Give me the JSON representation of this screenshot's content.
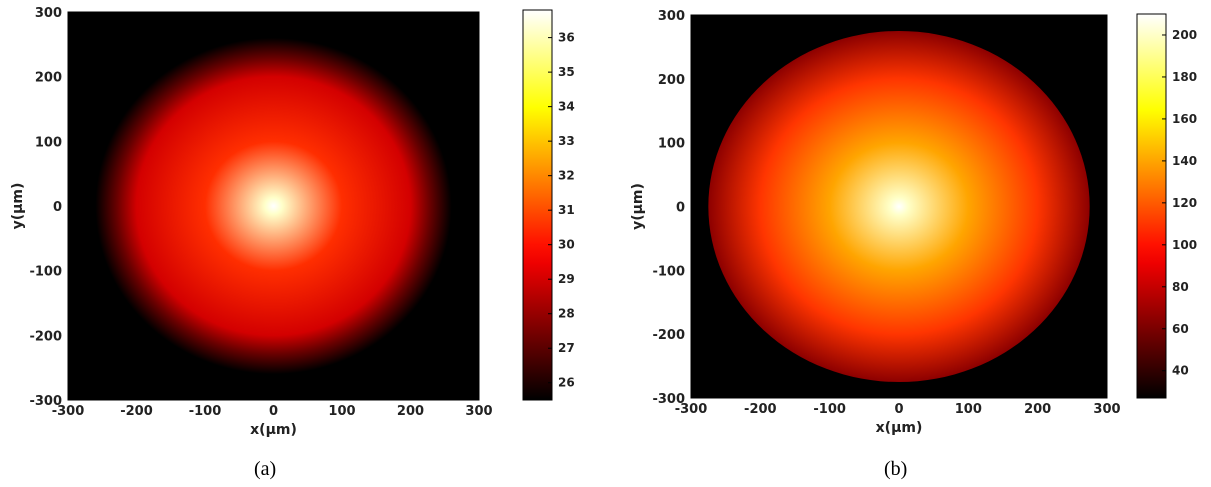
{
  "chart_data": [
    {
      "type": "heatmap",
      "caption": "(a)",
      "xlabel": "x(μm)",
      "ylabel": "y(μm)",
      "xlim": [
        -300,
        300
      ],
      "ylim": [
        -300,
        300
      ],
      "xticks": [
        "-300",
        "-200",
        "-100",
        "0",
        "100",
        "200",
        "300"
      ],
      "yticks": [
        "-300",
        "-200",
        "-100",
        "0",
        "100",
        "200",
        "300"
      ],
      "colormap": "hot",
      "colorbar": {
        "range": [
          25.5,
          36.8
        ],
        "ticks": [
          "26",
          "27",
          "28",
          "29",
          "30",
          "31",
          "32",
          "33",
          "34",
          "35",
          "36"
        ]
      },
      "field": {
        "shape": "radial",
        "center": [
          0,
          0
        ],
        "peak_value": 36.8,
        "background_value": 25.5,
        "value_at_radius_100": 30.5,
        "value_at_radius_200": 29.0,
        "falloff_end_radius": 260
      }
    },
    {
      "type": "heatmap",
      "caption": "(b)",
      "xlabel": "x(μm)",
      "ylabel": "y(μm)",
      "xlim": [
        -300,
        300
      ],
      "ylim": [
        -300,
        300
      ],
      "xticks": [
        "-300",
        "-200",
        "-100",
        "0",
        "100",
        "200",
        "300"
      ],
      "yticks": [
        "-300",
        "-200",
        "-100",
        "0",
        "100",
        "200",
        "300"
      ],
      "colormap": "hot",
      "colorbar": {
        "range": [
          27,
          210
        ],
        "ticks": [
          "40",
          "60",
          "80",
          "100",
          "120",
          "140",
          "160",
          "180",
          "200"
        ]
      },
      "field": {
        "shape": "radial-disk",
        "center": [
          0,
          0
        ],
        "peak_value": 210,
        "background_value": 27,
        "disk_radius": 275,
        "edge_value": 65,
        "value_at_radius_100": 140,
        "value_at_radius_200": 110
      }
    }
  ],
  "colors": {
    "background": "#0b0000",
    "frame": "#000000"
  }
}
